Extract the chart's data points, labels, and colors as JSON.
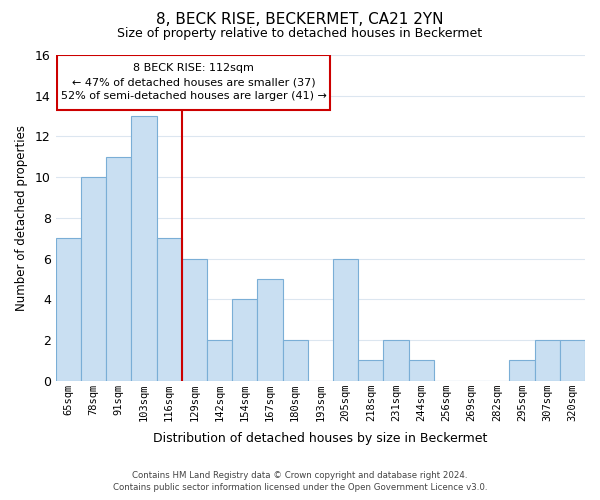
{
  "title": "8, BECK RISE, BECKERMET, CA21 2YN",
  "subtitle": "Size of property relative to detached houses in Beckermet",
  "xlabel": "Distribution of detached houses by size in Beckermet",
  "ylabel": "Number of detached properties",
  "categories": [
    "65sqm",
    "78sqm",
    "91sqm",
    "103sqm",
    "116sqm",
    "129sqm",
    "142sqm",
    "154sqm",
    "167sqm",
    "180sqm",
    "193sqm",
    "205sqm",
    "218sqm",
    "231sqm",
    "244sqm",
    "256sqm",
    "269sqm",
    "282sqm",
    "295sqm",
    "307sqm",
    "320sqm"
  ],
  "values": [
    7,
    10,
    11,
    13,
    7,
    6,
    2,
    4,
    5,
    2,
    0,
    6,
    1,
    2,
    1,
    0,
    0,
    0,
    1,
    2,
    2
  ],
  "bar_color": "#c9dff2",
  "bar_edge_color": "#7aaed6",
  "vline_x_idx": 4,
  "vline_color": "#cc0000",
  "ylim": [
    0,
    16
  ],
  "yticks": [
    0,
    2,
    4,
    6,
    8,
    10,
    12,
    14,
    16
  ],
  "annotation_title": "8 BECK RISE: 112sqm",
  "annotation_line1": "← 47% of detached houses are smaller (37)",
  "annotation_line2": "52% of semi-detached houses are larger (41) →",
  "annotation_box_color": "#ffffff",
  "annotation_box_edge_color": "#cc0000",
  "footer_line1": "Contains HM Land Registry data © Crown copyright and database right 2024.",
  "footer_line2": "Contains public sector information licensed under the Open Government Licence v3.0.",
  "background_color": "#ffffff",
  "grid_color": "#dce6f0"
}
